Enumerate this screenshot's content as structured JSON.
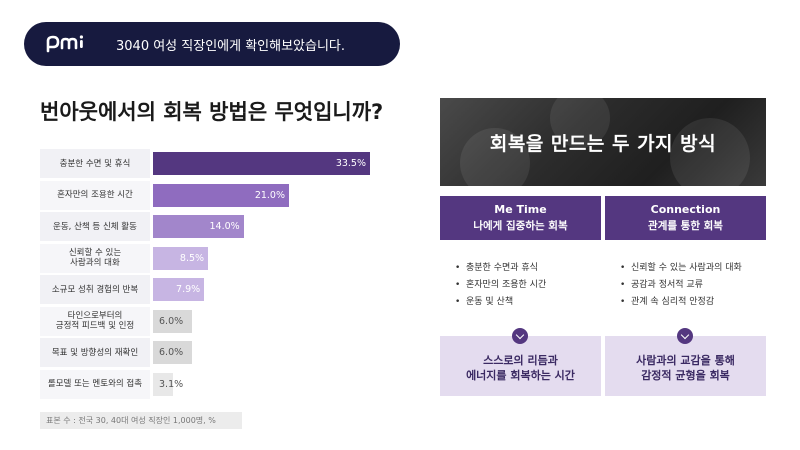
{
  "header": {
    "logo_text": "pmi",
    "title": "3040 여성 직장인에게 확인해보았습니다."
  },
  "question": "번아웃에서의 회복 방법은 무엇입니까?",
  "chart_data": {
    "type": "bar",
    "orientation": "horizontal",
    "categories": [
      "충분한 수면 및 휴식",
      "혼자만의 조용한 시간",
      "운동, 산책 등 신체 활동",
      "신뢰할 수 있는\n사람과의 대화",
      "소규모 성취 경험의 반복",
      "타인으로부터의\n긍정적 피드백 및 인정",
      "목표 및 방향성의 재확인",
      "롤모델 또는 멘토와의 접촉"
    ],
    "values": [
      33.5,
      21.0,
      14.0,
      8.5,
      7.9,
      6.0,
      6.0,
      3.1
    ],
    "value_labels": [
      "33.5%",
      "21.0%",
      "14.0%",
      "8.5%",
      "7.9%",
      "6.0%",
      "6.0%",
      "3.1%"
    ],
    "bar_colors": [
      "#543780",
      "#8f6cbf",
      "#a286cb",
      "#c7b5e3",
      "#c7b5e3",
      "#d9d9d9",
      "#d9d9d9",
      "#e8e8e8"
    ],
    "xlim": [
      0,
      33.5
    ],
    "grid": false,
    "legend": "none"
  },
  "sample_note": "표본 수 : 전국 30, 40대 여성 직장인 1,000명, %",
  "panel": {
    "title": "회복을 만드는 두 가지 방식",
    "columns": [
      {
        "name": "Me Time",
        "subtitle": "나에게 집중하는 회복",
        "bullets": [
          "충분한 수면과 휴식",
          "혼자만의 조용한 시간",
          "운동 및 산책"
        ],
        "result_line1": "스스로의 리듬과",
        "result_line2": "에너지를 회복하는 시간"
      },
      {
        "name": "Connection",
        "subtitle": "관계를 통한 회복",
        "bullets": [
          "신뢰할 수 있는 사람과의 대화",
          "공감과 정서적 교류",
          "관계 속 심리적 안정감"
        ],
        "result_line1": "사람과의 교감을 통해",
        "result_line2": "감정적 균형을 회복"
      }
    ]
  },
  "colors": {
    "navy": "#171a3f",
    "purple": "#543780",
    "light_purple": "#e4dcef"
  },
  "icons": [
    "chevron-down-icon"
  ]
}
